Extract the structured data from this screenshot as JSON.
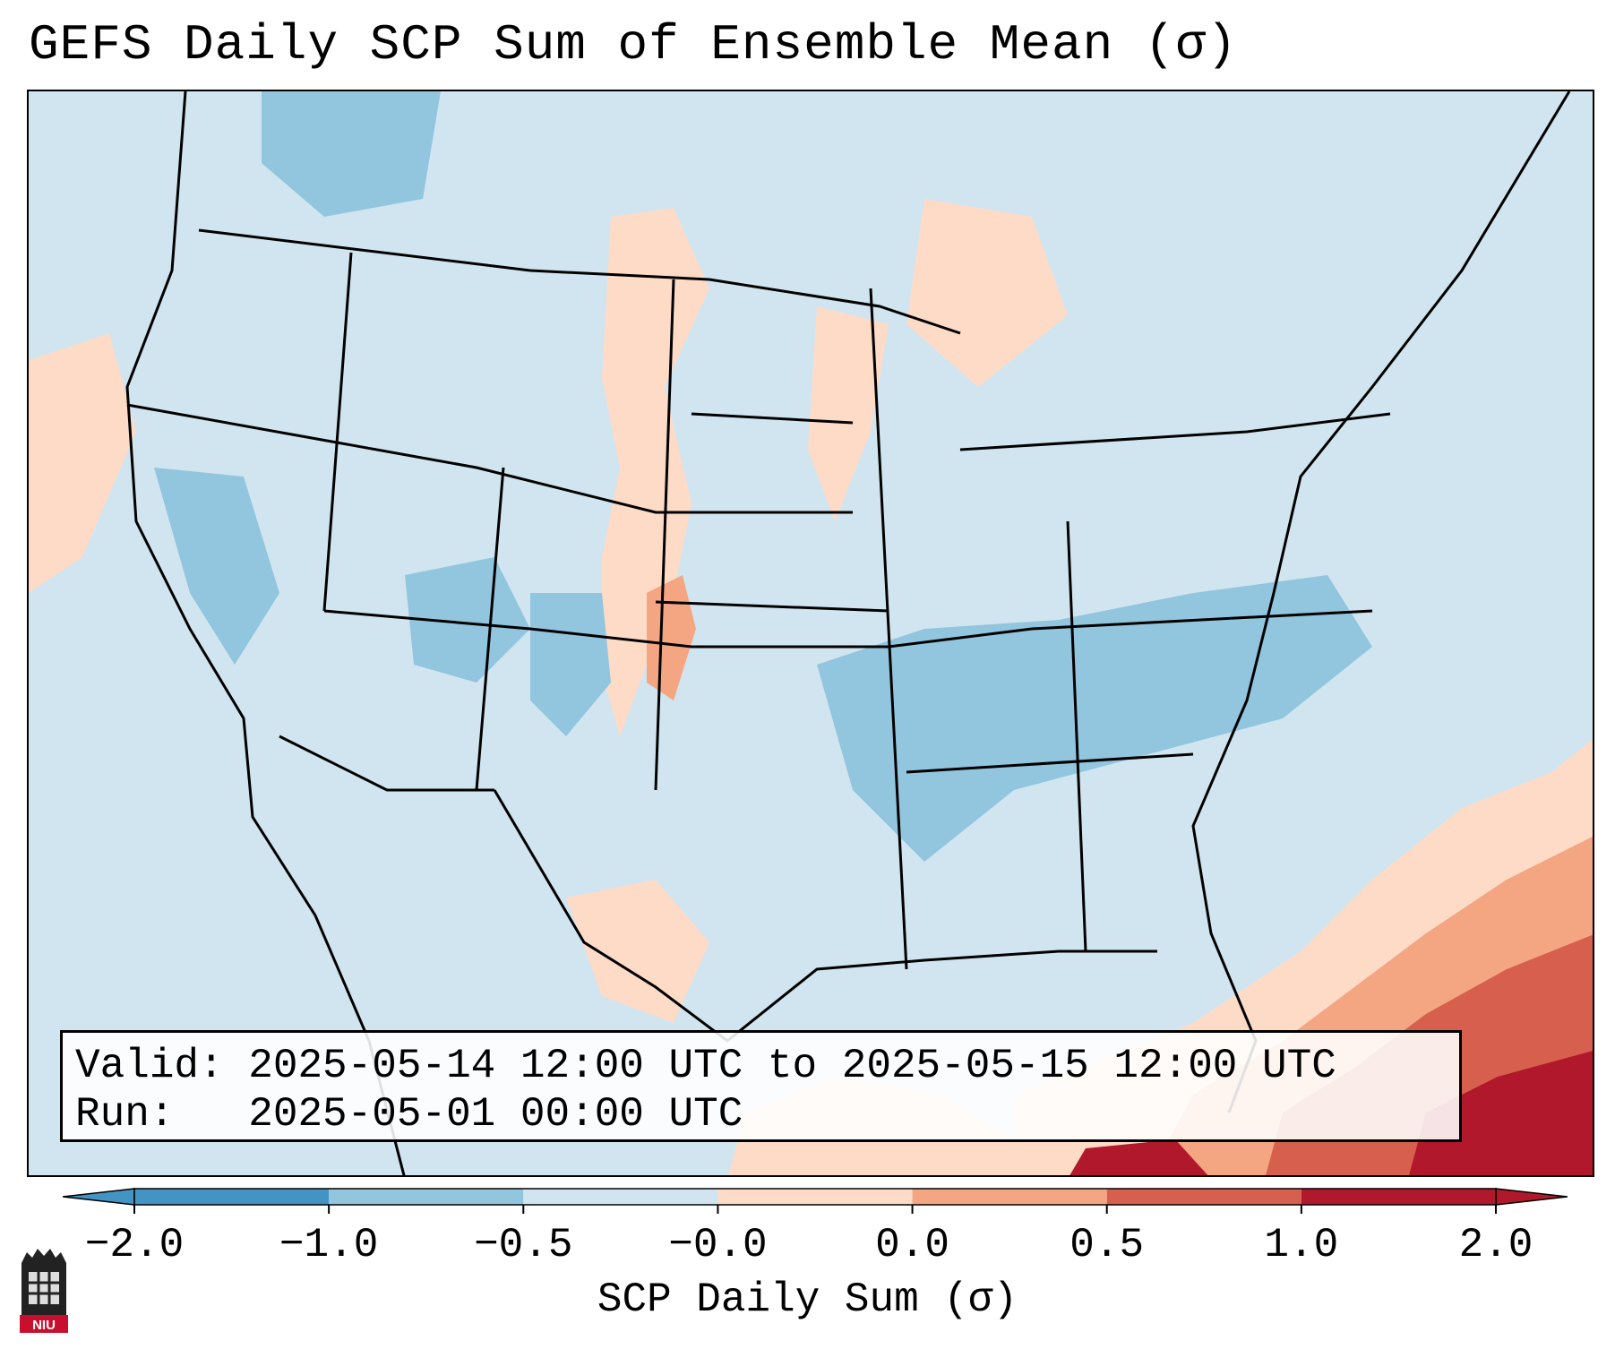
{
  "title": "GEFS Daily SCP Sum of Ensemble Mean (σ)",
  "info": {
    "valid_line": "Valid: 2025-05-14 12:00 UTC to 2025-05-15 12:00 UTC",
    "run_line": "Run:   2025-05-01 00:00 UTC"
  },
  "colorbar": {
    "label": "SCP Daily Sum (σ)",
    "ticks": [
      "−2.0",
      "−1.0",
      "−0.5",
      "−0.0",
      "0.0",
      "0.5",
      "1.0",
      "2.0"
    ],
    "colors": [
      "#4393c3",
      "#92c5de",
      "#d1e5f0",
      "#f7f7f7",
      "#fddbc7",
      "#f4a582",
      "#d6604d",
      "#b2182b"
    ],
    "extend": "both"
  },
  "logo": {
    "text": "NIU",
    "icon": "niu-logo-icon"
  },
  "map": {
    "region": "Continental United States",
    "field": "SCP daily sum anomaly",
    "background_color": "#d1e5f0"
  }
}
